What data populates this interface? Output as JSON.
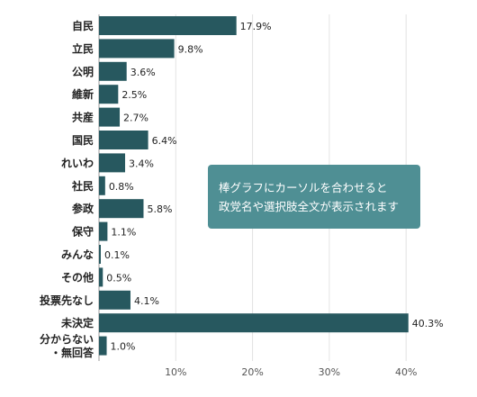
{
  "chart_data": {
    "type": "bar",
    "orientation": "horizontal",
    "categories": [
      "自民",
      "立民",
      "公明",
      "維新",
      "共産",
      "国民",
      "れいわ",
      "社民",
      "参政",
      "保守",
      "みんな",
      "その他",
      "投票先なし",
      "未決定",
      "分からない\n・無回答"
    ],
    "values": [
      17.9,
      9.8,
      3.6,
      2.5,
      2.7,
      6.4,
      3.4,
      0.8,
      5.8,
      1.1,
      0.1,
      0.5,
      4.1,
      40.3,
      1.0
    ],
    "value_labels": [
      "17.9%",
      "9.8%",
      "3.6%",
      "2.5%",
      "2.7%",
      "6.4%",
      "3.4%",
      "0.8%",
      "5.8%",
      "1.1%",
      "0.1%",
      "0.5%",
      "4.1%",
      "40.3%",
      "1.0%"
    ],
    "xticks": [
      10,
      20,
      30,
      40
    ],
    "xtick_labels": [
      "10%",
      "20%",
      "30%",
      "40%"
    ],
    "xlim": [
      0,
      45
    ],
    "grid": true,
    "title": "",
    "xlabel": "",
    "ylabel": ""
  },
  "tooltip": {
    "line1": "棒グラフにカーソルを合わせると",
    "line2": "政党名や選択肢全文が表示されます"
  },
  "colors": {
    "bar": "#27585f",
    "tooltip_bg": "#4f8f94",
    "grid": "#e2e2e2",
    "axis": "#999999"
  }
}
